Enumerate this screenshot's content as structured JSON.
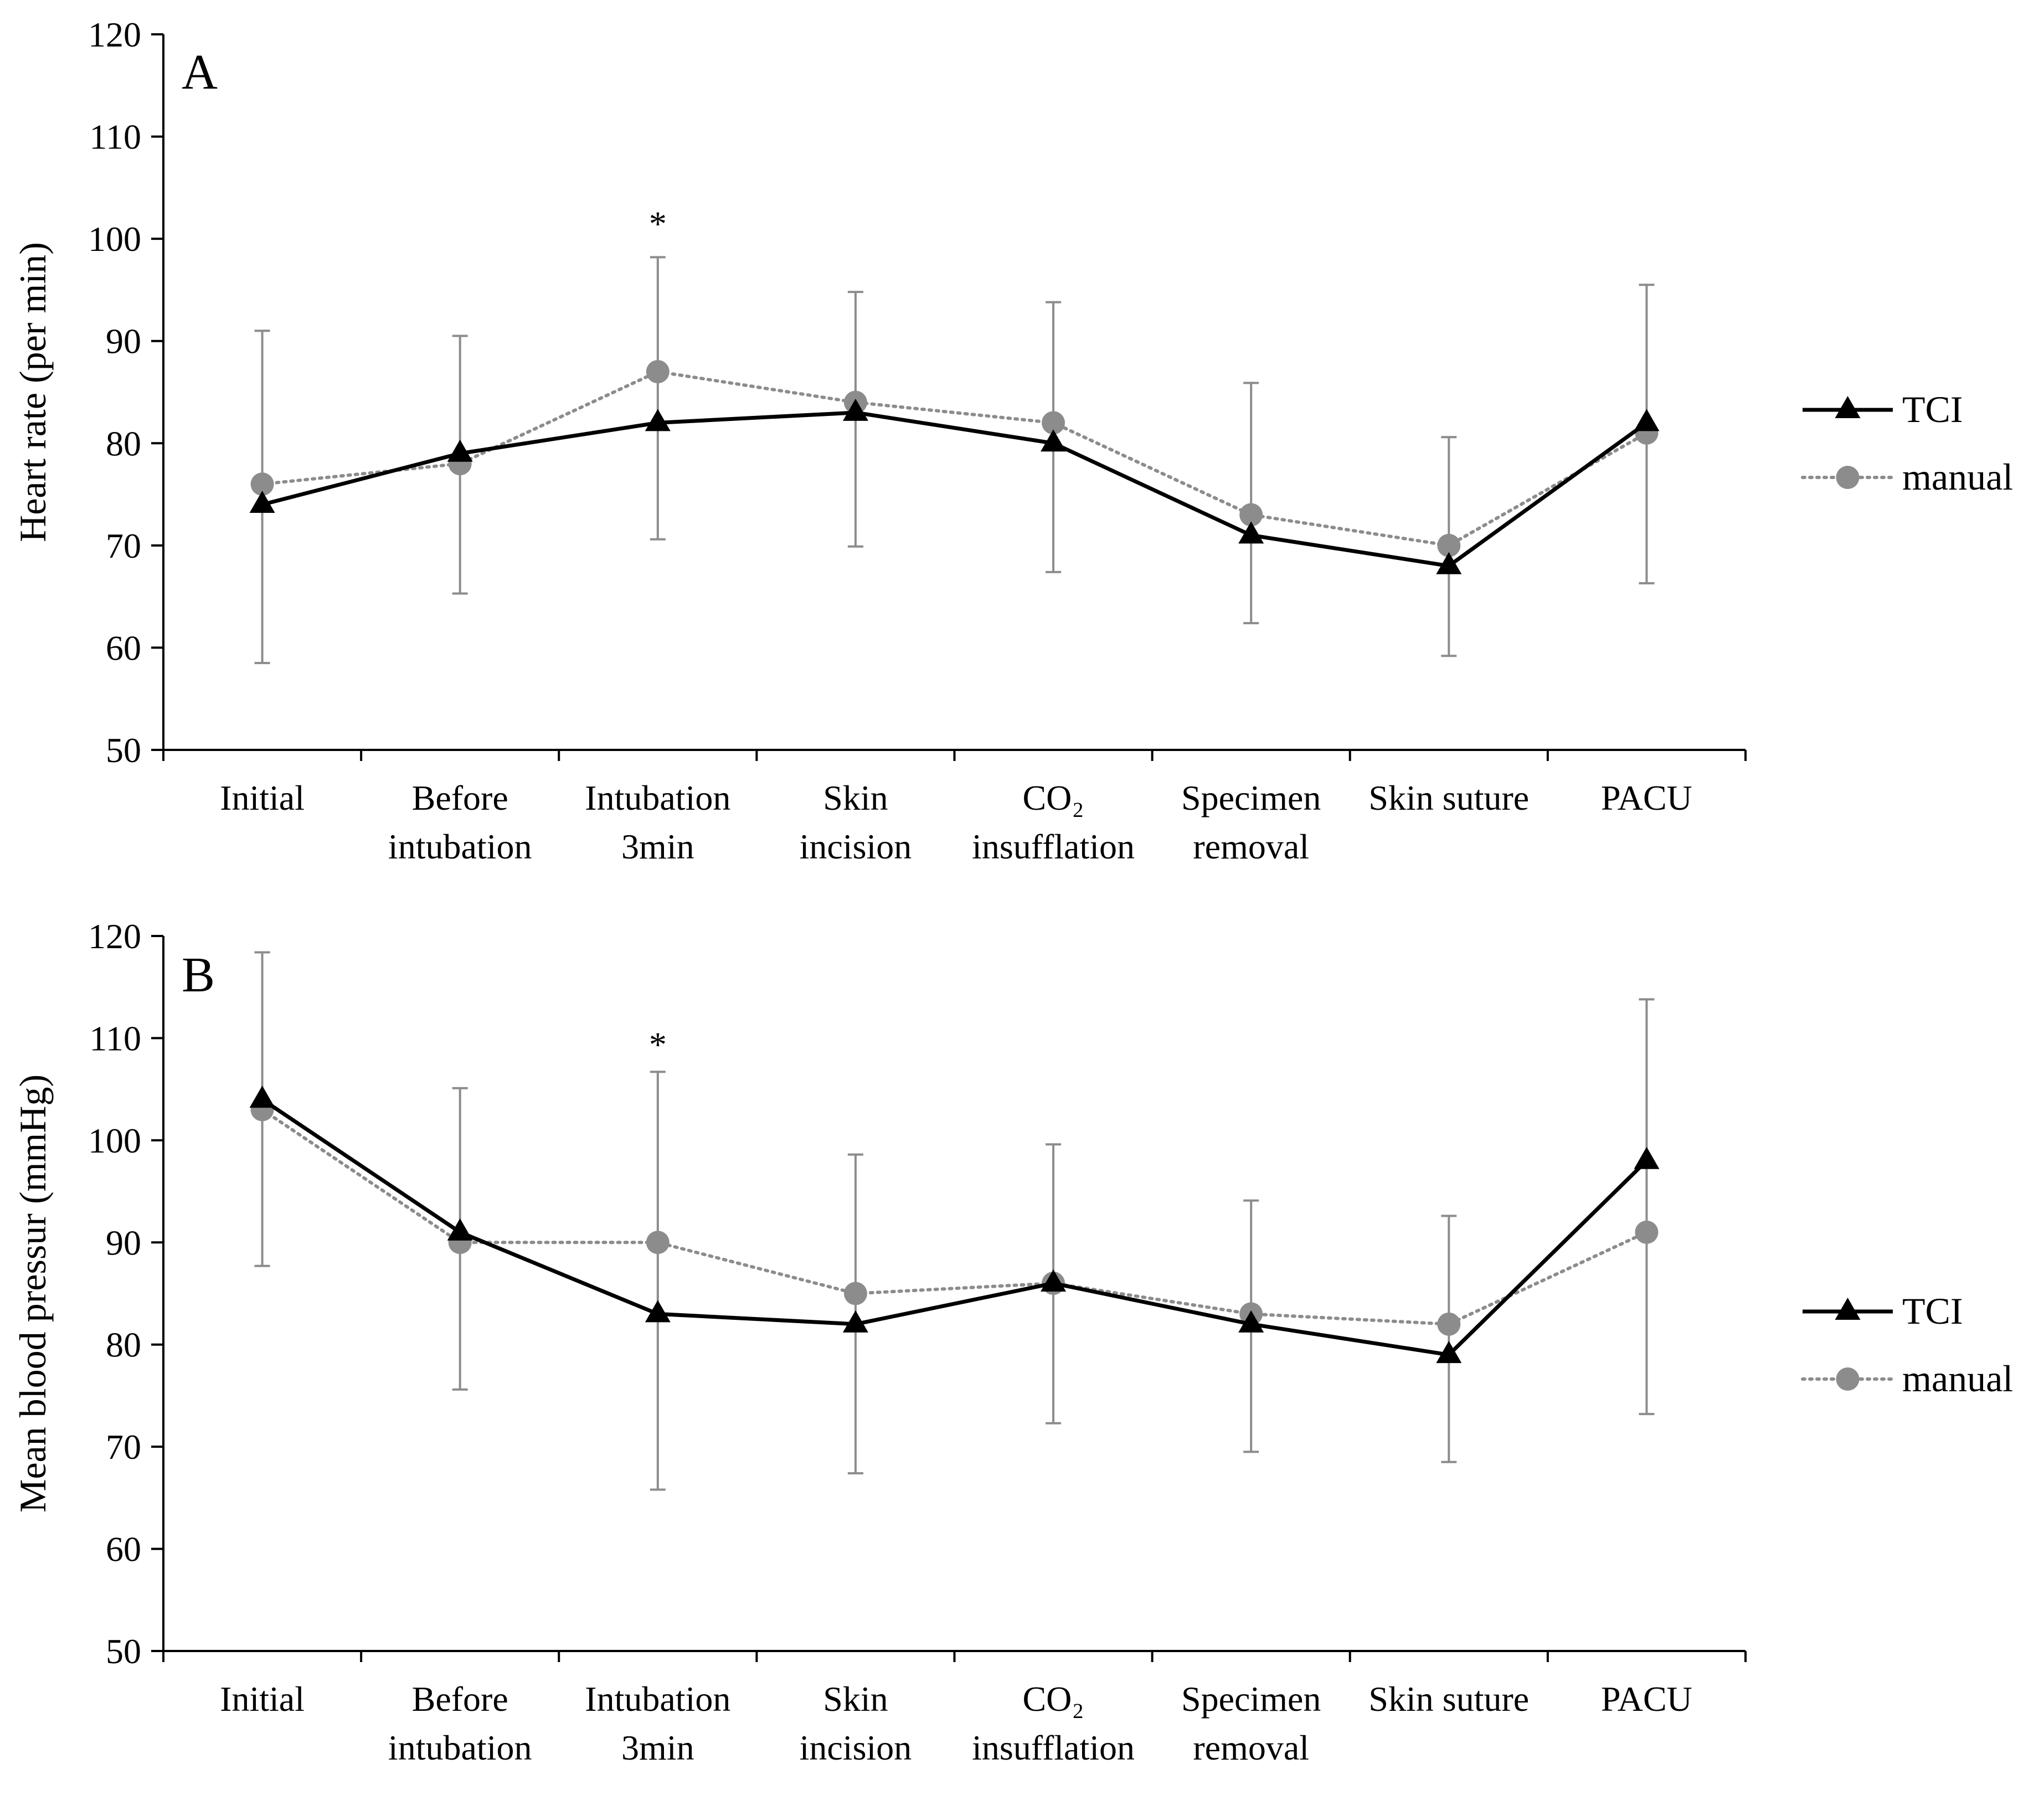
{
  "colors": {
    "tci": "#000000",
    "manual": "#8c8c8c",
    "errorbar": "#8c8c8c"
  },
  "chart_data": [
    {
      "type": "line",
      "panel_label": "A",
      "ylabel": "Heart rate (per min)",
      "ylim": [
        50,
        120
      ],
      "yticks": [
        "50",
        "60",
        "70",
        "80",
        "90",
        "100",
        "110",
        "120"
      ],
      "categories": [
        [
          "Initial"
        ],
        [
          "Before",
          "intubation"
        ],
        [
          "Intubation",
          "3min"
        ],
        [
          "Skin",
          "incision"
        ],
        [
          "CO₂",
          "insufflation"
        ],
        [
          "Specimen",
          "removal"
        ],
        [
          "Skin suture"
        ],
        [
          "PACU"
        ]
      ],
      "series": [
        {
          "name": "TCI",
          "marker": "triangle",
          "line": "solid",
          "values": [
            74,
            79,
            82,
            83,
            80,
            71,
            68,
            82
          ]
        },
        {
          "name": "manual",
          "marker": "circle",
          "line": "dotted",
          "values": [
            76,
            78,
            87,
            84,
            82,
            73,
            70,
            81
          ]
        }
      ],
      "error_bars": {
        "upper": [
          91,
          90.5,
          98.2,
          94.8,
          93.8,
          85.9,
          80.6,
          95.5
        ],
        "lower": [
          58.5,
          65.3,
          70.6,
          69.9,
          67.4,
          62.4,
          59.2,
          66.3
        ]
      },
      "annotations": [
        {
          "text": "*",
          "category_index": 2,
          "y": 101.5
        }
      ],
      "legend": "right"
    },
    {
      "type": "line",
      "panel_label": "B",
      "ylabel": "Mean blood pressur (mmHg)",
      "ylim": [
        50,
        120
      ],
      "yticks": [
        "50",
        "60",
        "70",
        "80",
        "90",
        "100",
        "110",
        "120"
      ],
      "categories": [
        [
          "Initial"
        ],
        [
          "Before",
          "intubation"
        ],
        [
          "Intubation",
          "3min"
        ],
        [
          "Skin",
          "incision"
        ],
        [
          "CO₂",
          "insufflation"
        ],
        [
          "Specimen",
          "removal"
        ],
        [
          "Skin suture"
        ],
        [
          "PACU"
        ]
      ],
      "series": [
        {
          "name": "TCI",
          "marker": "triangle",
          "line": "solid",
          "values": [
            104,
            91,
            83,
            82,
            86,
            82,
            79,
            98
          ]
        },
        {
          "name": "manual",
          "marker": "circle",
          "line": "dotted",
          "values": [
            103,
            90,
            90,
            85,
            86,
            83,
            82,
            91
          ]
        }
      ],
      "error_bars": {
        "upper": [
          118.4,
          105.1,
          106.7,
          98.6,
          99.6,
          94.1,
          92.6,
          113.8
        ],
        "lower": [
          87.7,
          75.6,
          65.8,
          67.4,
          72.3,
          69.5,
          68.5,
          73.2
        ]
      },
      "annotations": [
        {
          "text": "*",
          "category_index": 2,
          "y": 109.4
        }
      ],
      "legend": "right"
    }
  ]
}
